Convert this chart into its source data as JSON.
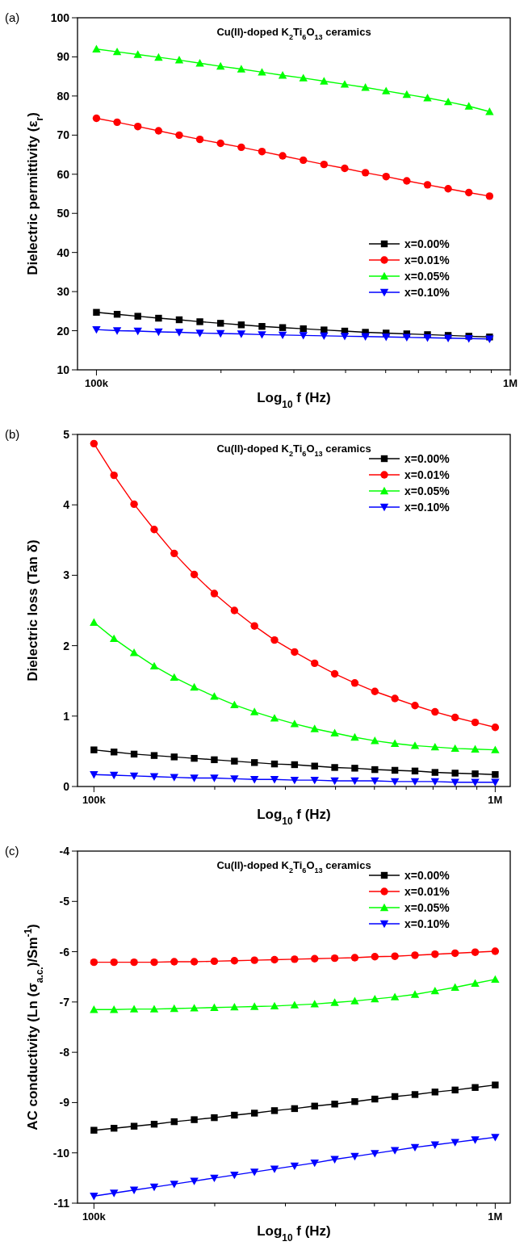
{
  "chart_data": [
    {
      "type": "line",
      "title": "Cu(II)-doped K$_{2}$Ti$_{6}$O$_{13}$ ceramics",
      "xlabel": "Log$_{10}$ f (Hz)",
      "ylabel": "Dielectric permittivity (ε$_{r}$)",
      "annotations": [
        "(a)"
      ],
      "log": "x",
      "legend": "right",
      "grid": false,
      "xlim": [
        90000,
        1000000
      ],
      "xticks": [
        {
          "value": 100000,
          "label": "100k"
        },
        {
          "value": 200000,
          "label": null
        },
        {
          "value": 300000,
          "label": null
        },
        {
          "value": 400000,
          "label": null
        },
        {
          "value": 500000,
          "label": null
        },
        {
          "value": 600000,
          "label": null
        },
        {
          "value": 700000,
          "label": null
        },
        {
          "value": 800000,
          "label": null
        },
        {
          "value": 900000,
          "label": null
        },
        {
          "value": 1000000,
          "label": "1M"
        }
      ],
      "ylim": [
        10,
        100
      ],
      "yticks": [
        10,
        20,
        30,
        40,
        50,
        60,
        70,
        80,
        90,
        100
      ],
      "x": [
        100000,
        112200,
        125900,
        141300,
        158500,
        177800,
        199500,
        223900,
        251200,
        281800,
        316200,
        354800,
        398100,
        446700,
        501200,
        562300,
        631000,
        707900,
        794300,
        891300
      ],
      "series": [
        {
          "name": "x=0.00%",
          "color": "#000000",
          "marker": "square",
          "values": [
            24.7,
            24.2,
            23.7,
            23.2,
            22.8,
            22.3,
            21.9,
            21.5,
            21.1,
            20.8,
            20.5,
            20.2,
            19.9,
            19.6,
            19.4,
            19.2,
            19.0,
            18.8,
            18.6,
            18.4
          ]
        },
        {
          "name": "x=0.01%",
          "color": "#ff0000",
          "marker": "circle",
          "values": [
            74.3,
            73.3,
            72.2,
            71.1,
            70.0,
            68.9,
            67.9,
            66.9,
            65.8,
            64.7,
            63.6,
            62.5,
            61.5,
            60.4,
            59.4,
            58.3,
            57.3,
            56.3,
            55.3,
            54.4
          ]
        },
        {
          "name": "x=0.05%",
          "color": "#00ff00",
          "marker": "triangle",
          "values": [
            92.0,
            91.3,
            90.6,
            89.9,
            89.2,
            88.4,
            87.6,
            86.9,
            86.1,
            85.3,
            84.6,
            83.8,
            83.0,
            82.2,
            81.3,
            80.4,
            79.5,
            78.5,
            77.4,
            76.0
          ]
        },
        {
          "name": "x=0.10%",
          "color": "#0000ff",
          "marker": "triangle-down",
          "values": [
            20.3,
            20.0,
            19.9,
            19.7,
            19.6,
            19.4,
            19.3,
            19.2,
            19.0,
            18.9,
            18.8,
            18.7,
            18.6,
            18.5,
            18.4,
            18.3,
            18.2,
            18.1,
            18.0,
            17.9
          ]
        }
      ]
    },
    {
      "type": "line",
      "title": "Cu(II)-doped K$_{2}$Ti$_{6}$O$_{13}$ ceramics",
      "xlabel": "Log$_{10}$ f (Hz)",
      "ylabel": "Dielectric loss (Tan δ)",
      "annotations": [
        "(b)"
      ],
      "log": "x",
      "legend": "top right",
      "grid": false,
      "xlim": [
        91000,
        1090000
      ],
      "xticks": [
        {
          "value": 100000,
          "label": "100k"
        },
        {
          "value": 200000,
          "label": null
        },
        {
          "value": 300000,
          "label": null
        },
        {
          "value": 400000,
          "label": null
        },
        {
          "value": 500000,
          "label": null
        },
        {
          "value": 600000,
          "label": null
        },
        {
          "value": 700000,
          "label": null
        },
        {
          "value": 800000,
          "label": null
        },
        {
          "value": 900000,
          "label": null
        },
        {
          "value": 1000000,
          "label": "1M"
        }
      ],
      "ylim": [
        0,
        5
      ],
      "yticks": [
        0,
        1,
        2,
        3,
        4,
        5
      ],
      "x": [
        100000,
        112200,
        125900,
        141300,
        158500,
        177800,
        199500,
        223900,
        251200,
        281800,
        316200,
        354800,
        398100,
        446700,
        501200,
        562300,
        631000,
        707900,
        794300,
        891300,
        1000000
      ],
      "series": [
        {
          "name": "x=0.00%",
          "color": "#000000",
          "marker": "square",
          "values": [
            0.52,
            0.49,
            0.46,
            0.44,
            0.42,
            0.4,
            0.38,
            0.36,
            0.34,
            0.32,
            0.31,
            0.29,
            0.27,
            0.26,
            0.24,
            0.23,
            0.22,
            0.2,
            0.19,
            0.18,
            0.17
          ]
        },
        {
          "name": "x=0.01%",
          "color": "#ff0000",
          "marker": "circle",
          "values": [
            4.87,
            4.42,
            4.01,
            3.65,
            3.31,
            3.01,
            2.74,
            2.5,
            2.28,
            2.08,
            1.91,
            1.75,
            1.6,
            1.47,
            1.35,
            1.25,
            1.15,
            1.06,
            0.98,
            0.91,
            0.84
          ]
        },
        {
          "name": "x=0.05%",
          "color": "#00ff00",
          "marker": "triangle",
          "values": [
            2.33,
            2.1,
            1.9,
            1.71,
            1.55,
            1.41,
            1.28,
            1.16,
            1.06,
            0.97,
            0.89,
            0.82,
            0.76,
            0.7,
            0.65,
            0.61,
            0.58,
            0.56,
            0.54,
            0.53,
            0.52
          ]
        },
        {
          "name": "x=0.10%",
          "color": "#0000ff",
          "marker": "triangle-down",
          "values": [
            0.17,
            0.16,
            0.15,
            0.14,
            0.13,
            0.12,
            0.12,
            0.11,
            0.1,
            0.1,
            0.09,
            0.09,
            0.08,
            0.08,
            0.08,
            0.07,
            0.07,
            0.07,
            0.06,
            0.06,
            0.06
          ]
        }
      ]
    },
    {
      "type": "line",
      "title": "Cu(II)-doped K$_{2}$Ti$_{6}$O$_{13}$ ceramics",
      "xlabel": "Log$_{10}$ f (Hz)",
      "ylabel": "AC conductivity (Ln (σ$_{a.c.}$)/Sm$^{-1}$)",
      "annotations": [
        "(c)"
      ],
      "log": "x",
      "legend": "top right",
      "grid": false,
      "xlim": [
        91000,
        1090000
      ],
      "xticks": [
        {
          "value": 100000,
          "label": "100k"
        },
        {
          "value": 200000,
          "label": null
        },
        {
          "value": 300000,
          "label": null
        },
        {
          "value": 400000,
          "label": null
        },
        {
          "value": 500000,
          "label": null
        },
        {
          "value": 600000,
          "label": null
        },
        {
          "value": 700000,
          "label": null
        },
        {
          "value": 800000,
          "label": null
        },
        {
          "value": 900000,
          "label": null
        },
        {
          "value": 1000000,
          "label": "1M"
        }
      ],
      "ylim": [
        -11,
        -4
      ],
      "yticks": [
        -11,
        -10,
        -9,
        -8,
        -7,
        -6,
        -5,
        -4
      ],
      "x": [
        100000,
        112200,
        125900,
        141300,
        158500,
        177800,
        199500,
        223900,
        251200,
        281800,
        316200,
        354800,
        398100,
        446700,
        501200,
        562300,
        631000,
        707900,
        794300,
        891300,
        1000000
      ],
      "series": [
        {
          "name": "x=0.00%",
          "color": "#000000",
          "marker": "square",
          "values": [
            -9.55,
            -9.51,
            -9.47,
            -9.43,
            -9.38,
            -9.34,
            -9.3,
            -9.25,
            -9.21,
            -9.16,
            -9.12,
            -9.07,
            -9.03,
            -8.98,
            -8.93,
            -8.88,
            -8.84,
            -8.79,
            -8.75,
            -8.7,
            -8.65
          ]
        },
        {
          "name": "x=0.01%",
          "color": "#ff0000",
          "marker": "circle",
          "values": [
            -6.21,
            -6.21,
            -6.21,
            -6.21,
            -6.2,
            -6.2,
            -6.19,
            -6.18,
            -6.17,
            -6.16,
            -6.15,
            -6.14,
            -6.13,
            -6.12,
            -6.1,
            -6.09,
            -6.07,
            -6.05,
            -6.03,
            -6.01,
            -5.99
          ]
        },
        {
          "name": "x=0.05%",
          "color": "#00ff00",
          "marker": "triangle",
          "values": [
            -7.15,
            -7.15,
            -7.14,
            -7.14,
            -7.13,
            -7.12,
            -7.11,
            -7.1,
            -7.09,
            -7.08,
            -7.06,
            -7.04,
            -7.01,
            -6.98,
            -6.94,
            -6.9,
            -6.85,
            -6.78,
            -6.71,
            -6.63,
            -6.55
          ]
        },
        {
          "name": "x=0.10%",
          "color": "#0000ff",
          "marker": "triangle-down",
          "values": [
            -10.86,
            -10.8,
            -10.74,
            -10.68,
            -10.62,
            -10.56,
            -10.5,
            -10.44,
            -10.38,
            -10.32,
            -10.26,
            -10.2,
            -10.13,
            -10.07,
            -10.01,
            -9.95,
            -9.89,
            -9.84,
            -9.79,
            -9.74,
            -9.69
          ]
        }
      ]
    }
  ]
}
